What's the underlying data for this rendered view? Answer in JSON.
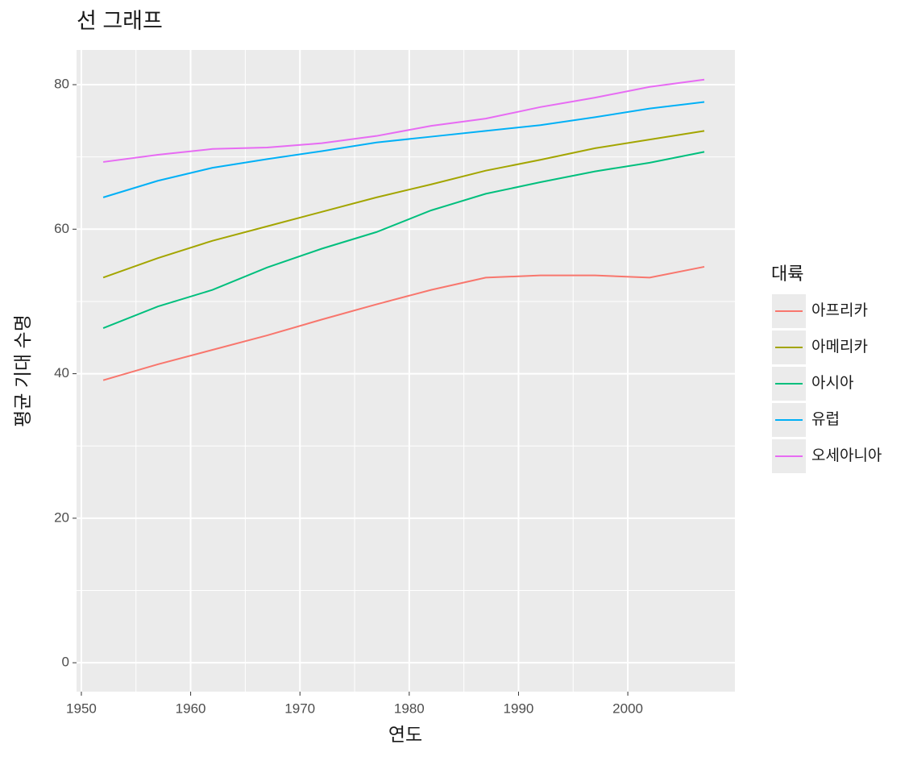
{
  "chart_data": {
    "type": "line",
    "title": "선 그래프",
    "x_label": "연도",
    "y_label": "평균 기대 수명",
    "x": [
      1952,
      1957,
      1962,
      1967,
      1972,
      1977,
      1982,
      1987,
      1992,
      1997,
      2002,
      2007
    ],
    "series": [
      {
        "name": "아프리카",
        "color": "#F8766D",
        "values": [
          39.1,
          41.3,
          43.3,
          45.3,
          47.5,
          49.6,
          51.6,
          53.3,
          53.6,
          53.6,
          53.3,
          54.8
        ]
      },
      {
        "name": "아메리카",
        "color": "#A3A500",
        "values": [
          53.3,
          56.0,
          58.4,
          60.4,
          62.4,
          64.4,
          66.2,
          68.1,
          69.6,
          71.2,
          72.4,
          73.6
        ]
      },
      {
        "name": "아시아",
        "color": "#00BF7D",
        "values": [
          46.3,
          49.3,
          51.6,
          54.7,
          57.3,
          59.6,
          62.6,
          64.9,
          66.5,
          68.0,
          69.2,
          70.7
        ]
      },
      {
        "name": "유럽",
        "color": "#00B0F6",
        "values": [
          64.4,
          66.7,
          68.5,
          69.7,
          70.8,
          72.0,
          72.8,
          73.6,
          74.4,
          75.5,
          76.7,
          77.6
        ]
      },
      {
        "name": "오세아니아",
        "color": "#E76BF3",
        "values": [
          69.3,
          70.3,
          71.1,
          71.3,
          71.9,
          72.9,
          74.3,
          75.3,
          76.9,
          78.2,
          79.7,
          80.7
        ]
      }
    ],
    "legend_title": "대륙",
    "xlim": [
      1949.56,
      2009.8
    ],
    "ylim": [
      -4.0,
      84.8
    ],
    "xticks": [
      1950,
      1960,
      1970,
      1980,
      1990,
      2000
    ],
    "yticks": [
      0,
      20,
      40,
      60,
      80
    ],
    "grid": true,
    "legend_position": "right"
  }
}
